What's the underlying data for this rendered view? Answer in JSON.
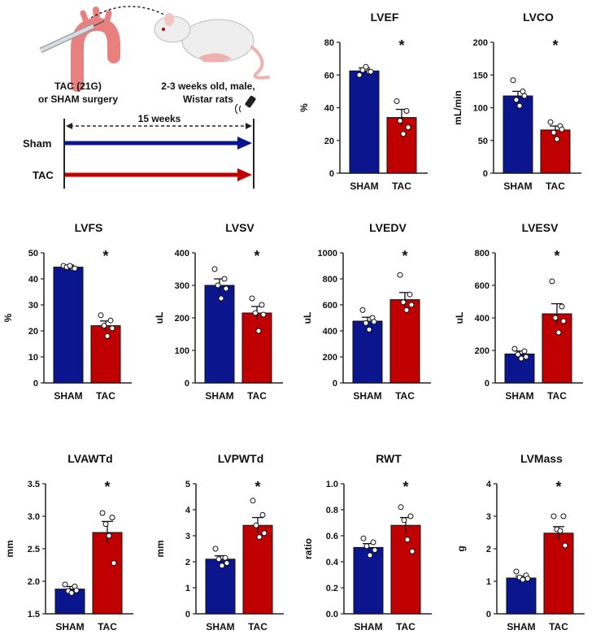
{
  "schematic": {
    "surgery_line1": "TAC (21G)",
    "surgery_line2": "or SHAM surgery",
    "rats_line1": "2-3 weeks old, male,",
    "rats_line2": "Wistar rats",
    "duration": "15 weeks",
    "group_sham": "Sham",
    "group_tac": "TAC",
    "colors": {
      "sham": "#0b168e",
      "tac": "#c00000"
    }
  },
  "chart_data": [
    {
      "type": "bar",
      "id": "lvef",
      "title": "LVEF",
      "ylabel": "%",
      "categories": [
        "SHAM",
        "TAC"
      ],
      "yticks": [
        "0",
        "20",
        "40",
        "60",
        "80"
      ],
      "ylim": [
        0,
        80
      ],
      "values": [
        62.5,
        34
      ],
      "errors": [
        1.8,
        5
      ],
      "points": [
        [
          60,
          62,
          63,
          65,
          62
        ],
        [
          44,
          38,
          32,
          24,
          28
        ]
      ],
      "significance": "*"
    },
    {
      "type": "bar",
      "id": "lvco",
      "title": "LVCO",
      "ylabel": "mL/min",
      "categories": [
        "SHAM",
        "TAC"
      ],
      "yticks": [
        "0",
        "50",
        "100",
        "150",
        "200"
      ],
      "ylim": [
        0,
        200
      ],
      "values": [
        118,
        66
      ],
      "errors": [
        7,
        6
      ],
      "points": [
        [
          142,
          125,
          112,
          103,
          118
        ],
        [
          78,
          72,
          62,
          52,
          67
        ]
      ],
      "significance": "*"
    },
    {
      "type": "bar",
      "id": "lvfs",
      "title": "LVFS",
      "ylabel": "%",
      "categories": [
        "SHAM",
        "TAC"
      ],
      "yticks": [
        "0",
        "10",
        "20",
        "30",
        "40",
        "50"
      ],
      "ylim": [
        0,
        50
      ],
      "values": [
        44.5,
        22
      ],
      "errors": [
        0.8,
        1.8
      ],
      "points": [
        [
          45,
          44,
          44.5,
          45,
          44
        ],
        [
          26,
          24,
          22,
          18,
          21
        ]
      ],
      "significance": "*"
    },
    {
      "type": "bar",
      "id": "lvsv",
      "title": "LVSV",
      "ylabel": "uL",
      "categories": [
        "SHAM",
        "TAC"
      ],
      "yticks": [
        "0",
        "100",
        "200",
        "300",
        "400"
      ],
      "ylim": [
        0,
        400
      ],
      "values": [
        300,
        215
      ],
      "errors": [
        20,
        20
      ],
      "points": [
        [
          350,
          320,
          300,
          260,
          290
        ],
        [
          260,
          240,
          215,
          160,
          210
        ]
      ],
      "significance": "*"
    },
    {
      "type": "bar",
      "id": "lvedv",
      "title": "LVEDV",
      "ylabel": "uL",
      "categories": [
        "SHAM",
        "TAC"
      ],
      "yticks": [
        "0",
        "200",
        "400",
        "600",
        "800",
        "1000"
      ],
      "ylim": [
        0,
        1000
      ],
      "values": [
        475,
        640
      ],
      "errors": [
        30,
        55
      ],
      "points": [
        [
          560,
          500,
          460,
          410,
          470
        ],
        [
          830,
          680,
          620,
          560,
          600
        ]
      ],
      "significance": "*"
    },
    {
      "type": "bar",
      "id": "lvesv",
      "title": "LVESV",
      "ylabel": "uL",
      "categories": [
        "SHAM",
        "TAC"
      ],
      "yticks": [
        "0",
        "200",
        "400",
        "600",
        "800"
      ],
      "ylim": [
        0,
        800
      ],
      "values": [
        178,
        425
      ],
      "errors": [
        18,
        62
      ],
      "points": [
        [
          210,
          195,
          175,
          150,
          160
        ],
        [
          625,
          470,
          400,
          310,
          380
        ]
      ],
      "significance": "*"
    },
    {
      "type": "bar",
      "id": "lvawtd",
      "title": "LVAWTd",
      "ylabel": "mm",
      "categories": [
        "SHAM",
        "TAC"
      ],
      "yticks": [
        "1.5",
        "2.0",
        "2.5",
        "3.0",
        "3.5"
      ],
      "ylim": [
        1.5,
        3.5
      ],
      "values": [
        1.88,
        2.75
      ],
      "errors": [
        0.04,
        0.17
      ],
      "points": [
        [
          1.95,
          1.92,
          1.85,
          1.82,
          1.86
        ],
        [
          3.05,
          2.98,
          2.88,
          2.7,
          2.28
        ]
      ],
      "significance": "*"
    },
    {
      "type": "bar",
      "id": "lvpwtd",
      "title": "LVPWTd",
      "ylabel": "mm",
      "categories": [
        "SHAM",
        "TAC"
      ],
      "yticks": [
        "0",
        "1",
        "2",
        "3",
        "4",
        "5"
      ],
      "ylim": [
        0,
        5
      ],
      "values": [
        2.1,
        3.4
      ],
      "errors": [
        0.13,
        0.3
      ],
      "points": [
        [
          2.5,
          2.15,
          2.1,
          1.85,
          1.95
        ],
        [
          4.35,
          3.8,
          3.4,
          2.95,
          3.1
        ]
      ],
      "significance": "*"
    },
    {
      "type": "bar",
      "id": "rwt",
      "title": "RWT",
      "ylabel": "ratio",
      "categories": [
        "SHAM",
        "TAC"
      ],
      "yticks": [
        "0.0",
        "0.2",
        "0.4",
        "0.6",
        "0.8",
        "1.0"
      ],
      "ylim": [
        0,
        1.0
      ],
      "values": [
        0.51,
        0.68
      ],
      "errors": [
        0.03,
        0.06
      ],
      "points": [
        [
          0.58,
          0.55,
          0.52,
          0.45,
          0.49
        ],
        [
          0.82,
          0.75,
          0.72,
          0.57,
          0.48
        ]
      ],
      "significance": "*"
    },
    {
      "type": "bar",
      "id": "lvmass",
      "title": "LVMass",
      "ylabel": "g",
      "categories": [
        "SHAM",
        "TAC"
      ],
      "yticks": [
        "0",
        "1",
        "2",
        "3",
        "4"
      ],
      "ylim": [
        0,
        4
      ],
      "values": [
        1.1,
        2.48
      ],
      "errors": [
        0.06,
        0.2
      ],
      "points": [
        [
          1.3,
          1.18,
          1.12,
          1.05,
          1.08
        ],
        [
          3.0,
          3.0,
          2.6,
          2.55,
          2.1
        ]
      ],
      "significance": "*"
    }
  ]
}
